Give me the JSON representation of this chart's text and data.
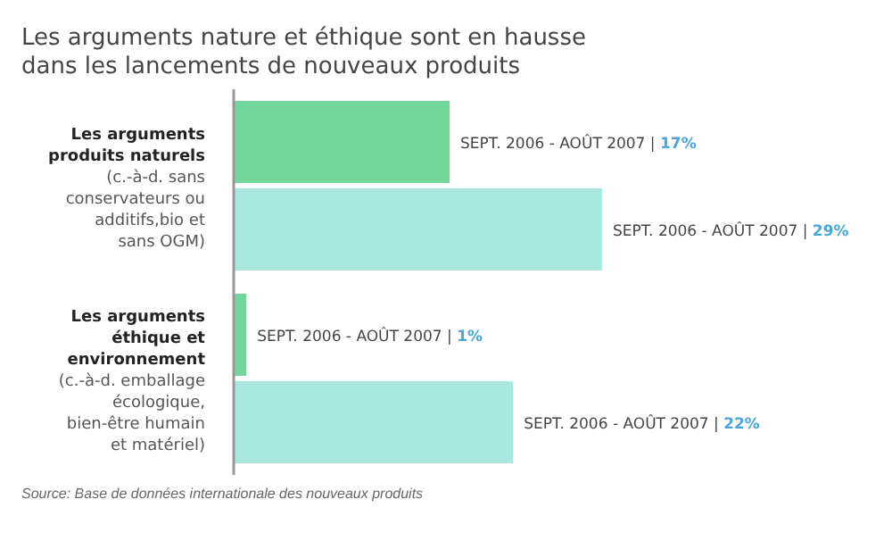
{
  "chart_data": {
    "type": "bar",
    "orientation": "horizontal",
    "title": "Les arguments nature et éthique sont en hausse dans les lancements de nouveaux produits",
    "categories": [
      "Les arguments produits naturels (c.-à-d. sans conservateurs ou additifs,bio et sans OGM)",
      "Les arguments éthique et environnement (c.-à-d. emballage écologique, bien-être humain et matériel)"
    ],
    "series": [
      {
        "color": "#72d69a",
        "values": [
          17,
          1
        ],
        "value_labels": [
          "SEPT. 2006 - AOÛT 2007 | 17%",
          "SEPT. 2006 - AOÛT 2007 | 1%"
        ]
      },
      {
        "color": "#a8e8df",
        "values": [
          29,
          22
        ],
        "value_labels": [
          "SEPT. 2006 - AOÛT 2007 | 29%",
          "SEPT. 2006 - AOÛT 2007 | 22%"
        ]
      }
    ],
    "tick_labels": false,
    "grid": false,
    "legend": false,
    "annotations": [
      "Source: Base de données internationale des nouveaux produits"
    ]
  }
}
